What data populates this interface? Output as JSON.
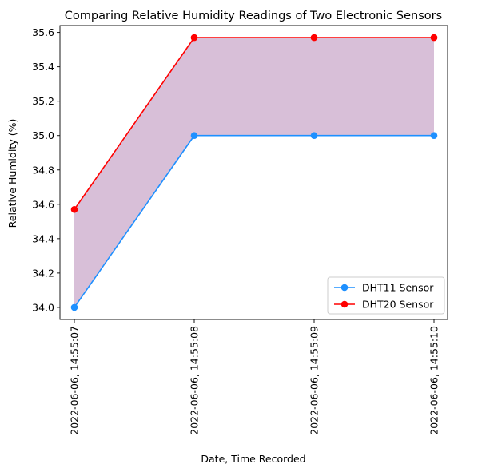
{
  "chart_data": {
    "type": "line",
    "title": "Comparing Relative Humidity Readings of Two Electronic Sensors",
    "xlabel": "Date, Time Recorded",
    "ylabel": "Relative Humidity (%)",
    "categories": [
      "2022-06-06, 14:55:07",
      "2022-06-06, 14:55:08",
      "2022-06-06, 14:55:09",
      "2022-06-06, 14:55:10"
    ],
    "ylim": [
      33.93,
      35.64
    ],
    "yticks": [
      {
        "value": 34.0,
        "label": "34.0"
      },
      {
        "value": 34.2,
        "label": "34.2"
      },
      {
        "value": 34.4,
        "label": "34.4"
      },
      {
        "value": 34.6,
        "label": "34.6"
      },
      {
        "value": 34.8,
        "label": "34.8"
      },
      {
        "value": 35.0,
        "label": "35.0"
      },
      {
        "value": 35.2,
        "label": "35.2"
      },
      {
        "value": 35.4,
        "label": "35.4"
      },
      {
        "value": 35.6,
        "label": "35.6"
      }
    ],
    "series": [
      {
        "name": "DHT11 Sensor",
        "color": "#1e90ff",
        "values": [
          34.0,
          35.0,
          35.0,
          35.0
        ]
      },
      {
        "name": "DHT20 Sensor",
        "color": "#ff0000",
        "values": [
          34.57,
          35.57,
          35.57,
          35.57
        ]
      }
    ],
    "fill_between": {
      "color": "#d8bfd8"
    },
    "legend_position": "lower-right",
    "grid": false
  }
}
